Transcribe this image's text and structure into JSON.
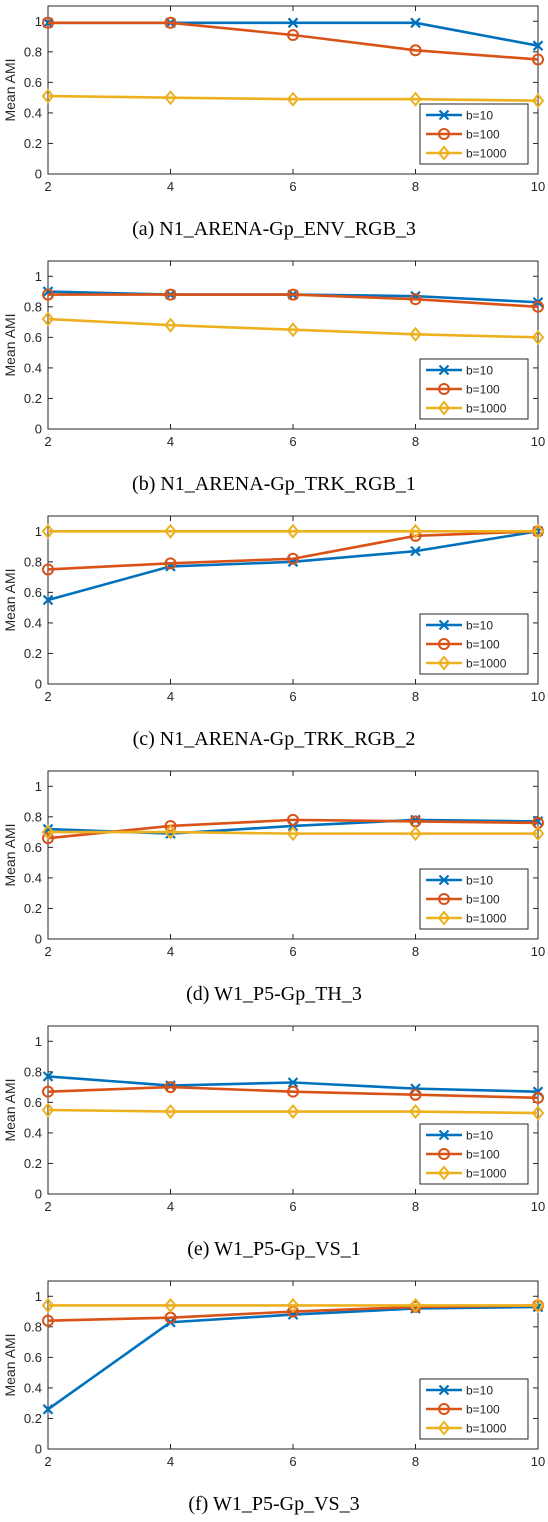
{
  "chart_data": [
    {
      "type": "line",
      "caption": "(a) N1_ARENA-Gp_ENV_RGB_3",
      "ylabel": "Mean AMI",
      "xlabel": "",
      "x": [
        2,
        4,
        6,
        8,
        10
      ],
      "xticks": [
        "2",
        "4",
        "6",
        "8",
        "10"
      ],
      "yticks": [
        "0",
        "0.2",
        "0.4",
        "0.6",
        "0.8",
        "1"
      ],
      "xlim": [
        2,
        10
      ],
      "ylim": [
        0,
        1.1
      ],
      "grid": false,
      "legend_position": "lower-right",
      "series": [
        {
          "name": "b=10",
          "values": [
            0.99,
            0.99,
            0.99,
            0.99,
            0.84
          ],
          "color": "#0072BD",
          "marker": "x"
        },
        {
          "name": "b=100",
          "values": [
            0.99,
            0.99,
            0.91,
            0.81,
            0.75
          ],
          "color": "#D95319",
          "marker": "o"
        },
        {
          "name": "b=1000",
          "values": [
            0.51,
            0.5,
            0.49,
            0.49,
            0.48
          ],
          "color": "#EDB120",
          "marker": "d"
        }
      ]
    },
    {
      "type": "line",
      "caption": "(b) N1_ARENA-Gp_TRK_RGB_1",
      "ylabel": "Mean AMI",
      "xlabel": "",
      "x": [
        2,
        4,
        6,
        8,
        10
      ],
      "xticks": [
        "2",
        "4",
        "6",
        "8",
        "10"
      ],
      "yticks": [
        "0",
        "0.2",
        "0.4",
        "0.6",
        "0.8",
        "1"
      ],
      "xlim": [
        2,
        10
      ],
      "ylim": [
        0,
        1.1
      ],
      "grid": false,
      "legend_position": "lower-right",
      "series": [
        {
          "name": "b=10",
          "values": [
            0.9,
            0.88,
            0.88,
            0.87,
            0.83
          ],
          "color": "#0072BD",
          "marker": "x"
        },
        {
          "name": "b=100",
          "values": [
            0.88,
            0.88,
            0.88,
            0.85,
            0.8
          ],
          "color": "#D95319",
          "marker": "o"
        },
        {
          "name": "b=1000",
          "values": [
            0.72,
            0.68,
            0.65,
            0.62,
            0.6
          ],
          "color": "#EDB120",
          "marker": "d"
        }
      ]
    },
    {
      "type": "line",
      "caption": "(c) N1_ARENA-Gp_TRK_RGB_2",
      "ylabel": "Mean AMI",
      "xlabel": "",
      "x": [
        2,
        4,
        6,
        8,
        10
      ],
      "xticks": [
        "2",
        "4",
        "6",
        "8",
        "10"
      ],
      "yticks": [
        "0",
        "0.2",
        "0.4",
        "0.6",
        "0.8",
        "1"
      ],
      "xlim": [
        2,
        10
      ],
      "ylim": [
        0,
        1.1
      ],
      "grid": false,
      "legend_position": "lower-right",
      "series": [
        {
          "name": "b=10",
          "values": [
            0.55,
            0.77,
            0.8,
            0.87,
            1.0
          ],
          "color": "#0072BD",
          "marker": "x"
        },
        {
          "name": "b=100",
          "values": [
            0.75,
            0.79,
            0.82,
            0.97,
            1.0
          ],
          "color": "#D95319",
          "marker": "o"
        },
        {
          "name": "b=1000",
          "values": [
            1.0,
            1.0,
            1.0,
            1.0,
            1.0
          ],
          "color": "#EDB120",
          "marker": "d"
        }
      ]
    },
    {
      "type": "line",
      "caption": "(d) W1_P5-Gp_TH_3",
      "ylabel": "Mean AMI",
      "xlabel": "",
      "x": [
        2,
        4,
        6,
        8,
        10
      ],
      "xticks": [
        "2",
        "4",
        "6",
        "8",
        "10"
      ],
      "yticks": [
        "0",
        "0.2",
        "0.4",
        "0.6",
        "0.8",
        "1"
      ],
      "xlim": [
        2,
        10
      ],
      "ylim": [
        0,
        1.1
      ],
      "grid": false,
      "legend_position": "lower-right",
      "series": [
        {
          "name": "b=10",
          "values": [
            0.72,
            0.69,
            0.74,
            0.78,
            0.77
          ],
          "color": "#0072BD",
          "marker": "x"
        },
        {
          "name": "b=100",
          "values": [
            0.66,
            0.74,
            0.78,
            0.77,
            0.76
          ],
          "color": "#D95319",
          "marker": "o"
        },
        {
          "name": "b=1000",
          "values": [
            0.7,
            0.7,
            0.69,
            0.69,
            0.69
          ],
          "color": "#EDB120",
          "marker": "d"
        }
      ]
    },
    {
      "type": "line",
      "caption": "(e) W1_P5-Gp_VS_1",
      "ylabel": "Mean AMI",
      "xlabel": "",
      "x": [
        2,
        4,
        6,
        8,
        10
      ],
      "xticks": [
        "2",
        "4",
        "6",
        "8",
        "10"
      ],
      "yticks": [
        "0",
        "0.2",
        "0.4",
        "0.6",
        "0.8",
        "1"
      ],
      "xlim": [
        2,
        10
      ],
      "ylim": [
        0,
        1.1
      ],
      "grid": false,
      "legend_position": "lower-right",
      "series": [
        {
          "name": "b=10",
          "values": [
            0.77,
            0.71,
            0.73,
            0.69,
            0.67
          ],
          "color": "#0072BD",
          "marker": "x"
        },
        {
          "name": "b=100",
          "values": [
            0.67,
            0.7,
            0.67,
            0.65,
            0.63
          ],
          "color": "#D95319",
          "marker": "o"
        },
        {
          "name": "b=1000",
          "values": [
            0.55,
            0.54,
            0.54,
            0.54,
            0.53
          ],
          "color": "#EDB120",
          "marker": "d"
        }
      ]
    },
    {
      "type": "line",
      "caption": "(f) W1_P5-Gp_VS_3",
      "ylabel": "Mean AMI",
      "xlabel": "",
      "x": [
        2,
        4,
        6,
        8,
        10
      ],
      "xticks": [
        "2",
        "4",
        "6",
        "8",
        "10"
      ],
      "yticks": [
        "0",
        "0.2",
        "0.4",
        "0.6",
        "0.8",
        "1"
      ],
      "xlim": [
        2,
        10
      ],
      "ylim": [
        0,
        1.1
      ],
      "grid": false,
      "legend_position": "lower-right",
      "series": [
        {
          "name": "b=10",
          "values": [
            0.26,
            0.83,
            0.88,
            0.92,
            0.93
          ],
          "color": "#0072BD",
          "marker": "x"
        },
        {
          "name": "b=100",
          "values": [
            0.84,
            0.86,
            0.9,
            0.93,
            0.94
          ],
          "color": "#D95319",
          "marker": "o"
        },
        {
          "name": "b=1000",
          "values": [
            0.94,
            0.94,
            0.94,
            0.94,
            0.94
          ],
          "color": "#EDB120",
          "marker": "d"
        }
      ]
    }
  ]
}
